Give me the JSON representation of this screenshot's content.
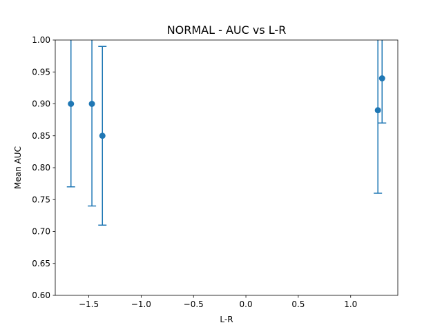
{
  "chart_data": {
    "type": "scatter",
    "title": "NORMAL - AUC vs L-R",
    "xlabel": "L-R",
    "ylabel": "Mean AUC",
    "xlim": [
      -1.82,
      1.45
    ],
    "ylim": [
      0.6,
      1.0
    ],
    "xticks": [
      -1.5,
      -1.0,
      -0.5,
      0.0,
      0.5,
      1.0
    ],
    "xtick_labels": [
      "−1.5",
      "−1.0",
      "−0.5",
      "0.0",
      "0.5",
      "1.0"
    ],
    "yticks": [
      0.6,
      0.65,
      0.7,
      0.75,
      0.8,
      0.85,
      0.9,
      0.95,
      1.0
    ],
    "ytick_labels": [
      "0.60",
      "0.65",
      "0.70",
      "0.75",
      "0.80",
      "0.85",
      "0.90",
      "0.95",
      "1.00"
    ],
    "grid": false,
    "color": "#1f77b4",
    "points": [
      {
        "x": -1.67,
        "y": 0.9,
        "err_low": 0.77,
        "err_high": 1.03
      },
      {
        "x": -1.47,
        "y": 0.9,
        "err_low": 0.74,
        "err_high": 1.06
      },
      {
        "x": -1.37,
        "y": 0.85,
        "err_low": 0.71,
        "err_high": 0.99
      },
      {
        "x": 1.26,
        "y": 0.89,
        "err_low": 0.76,
        "err_high": 1.02
      },
      {
        "x": 1.3,
        "y": 0.94,
        "err_low": 0.87,
        "err_high": 1.01
      }
    ]
  }
}
